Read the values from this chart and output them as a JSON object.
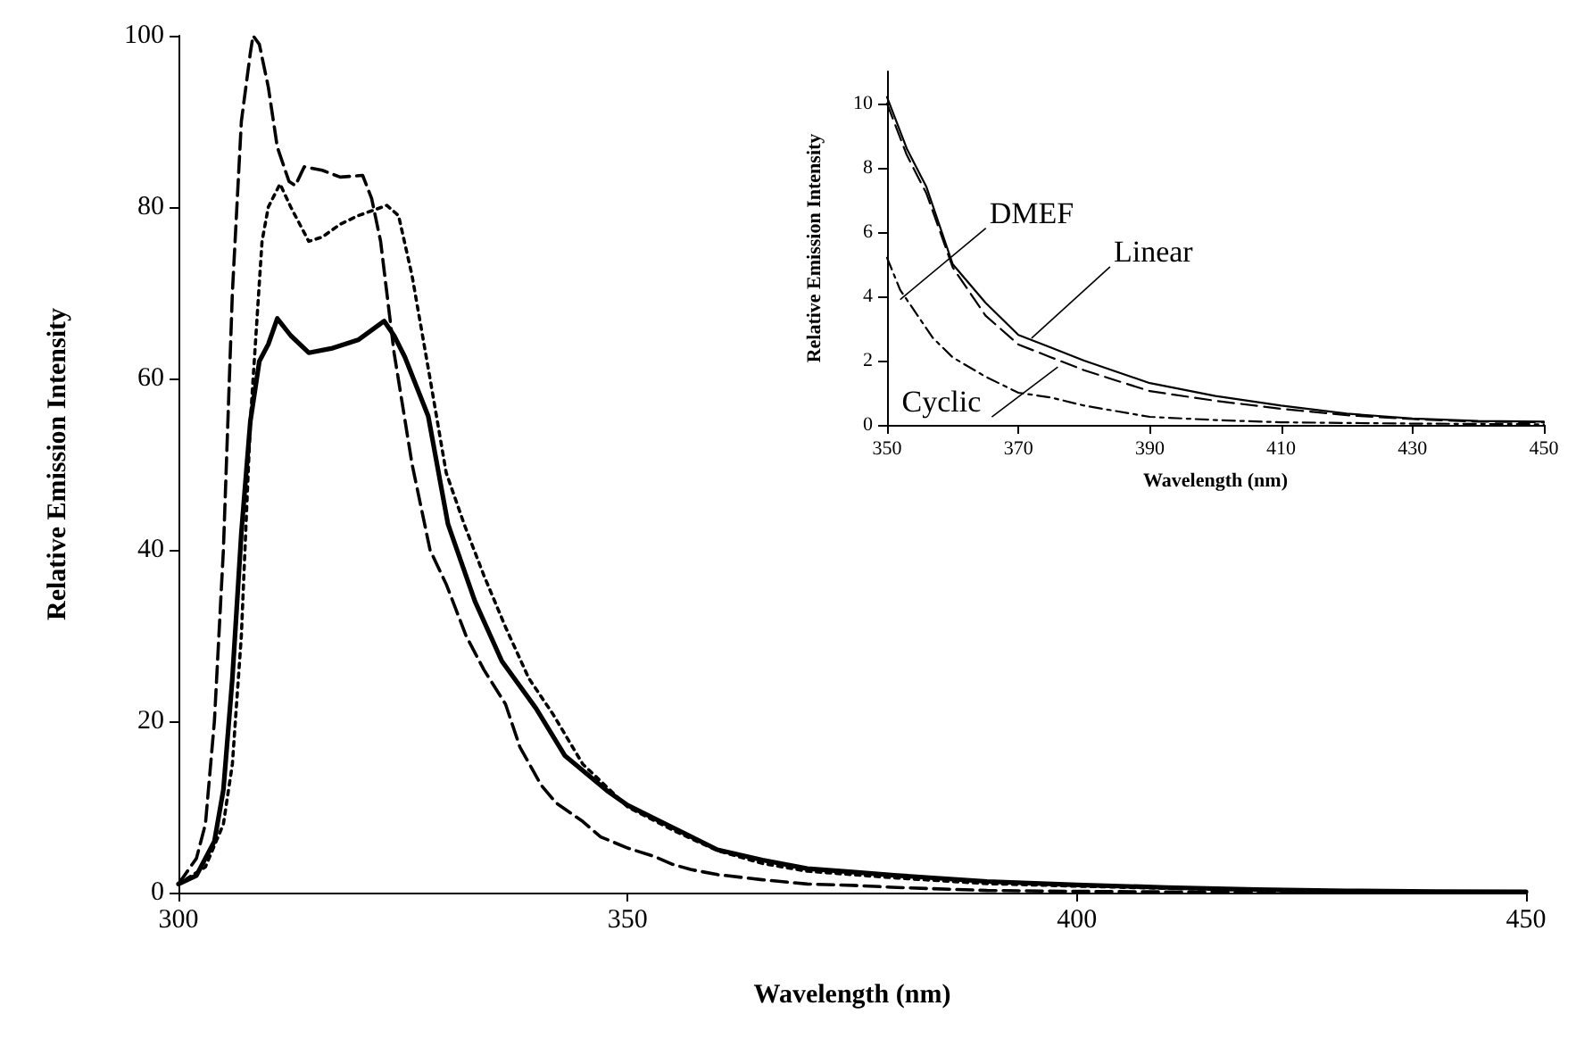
{
  "chart_data": [
    {
      "type": "line",
      "xlabel": "Wavelength (nm)",
      "ylabel": "Relative Emission Intensity",
      "xlim": [
        300,
        450
      ],
      "ylim": [
        0,
        100
      ],
      "xticks": [
        300,
        350,
        400,
        450
      ],
      "yticks": [
        0,
        20,
        40,
        60,
        80,
        100
      ],
      "grid": false,
      "marker": "none",
      "series": [
        {
          "color": "#000000",
          "line_style": "dashed",
          "x": [
            300,
            302,
            303,
            304,
            305,
            306,
            307,
            308,
            308.3,
            309,
            310,
            311,
            312.3,
            313,
            314,
            316,
            318,
            320.5,
            321.5,
            322.5,
            324,
            326,
            328,
            329.8,
            332,
            334,
            336.4,
            338,
            340.4,
            342,
            345,
            347,
            350,
            353,
            355,
            357,
            360,
            365,
            370,
            375,
            380,
            390,
            400,
            410,
            430,
            450
          ],
          "values": [
            1,
            4,
            8,
            20,
            40,
            70,
            90,
            98,
            100,
            99,
            94,
            87,
            83,
            82.5,
            84.7,
            84.3,
            83.5,
            83.7,
            81,
            76,
            63,
            50,
            40,
            36,
            30,
            26,
            22,
            17,
            12.5,
            10.5,
            8.3,
            6.5,
            5.2,
            4.2,
            3.3,
            2.7,
            2.1,
            1.5,
            1,
            0.85,
            0.6,
            0.25,
            0.15,
            0.08,
            0.04,
            0.02
          ]
        },
        {
          "color": "#000000",
          "line_style": "dotted",
          "x": [
            300,
            303,
            305,
            306,
            307,
            308,
            309.3,
            310,
            311.3,
            312.5,
            314.5,
            316,
            318,
            320,
            323.2,
            324.5,
            326,
            328,
            329.8,
            331.8,
            334,
            336.4,
            339,
            341.7,
            345,
            350,
            355,
            360,
            365,
            370,
            375,
            380,
            390,
            400,
            410,
            420,
            430,
            440,
            450
          ],
          "values": [
            1,
            3,
            8,
            15,
            30,
            55,
            76,
            80,
            82.7,
            80,
            76,
            76.5,
            78,
            79,
            80.2,
            79,
            72,
            60,
            49,
            43,
            37,
            31,
            25,
            20.8,
            15,
            10,
            7.3,
            4.9,
            3.4,
            2.5,
            2.1,
            1.7,
            1.05,
            0.75,
            0.5,
            0.3,
            0.18,
            0.1,
            0.08
          ]
        },
        {
          "color": "#000000",
          "line_style": "solid",
          "x": [
            300,
            302,
            304,
            305,
            306,
            307,
            308,
            309,
            310,
            311,
            312.5,
            314.5,
            317,
            320,
            322.9,
            324,
            325.2,
            327.8,
            330,
            333,
            336,
            339.8,
            343,
            347.7,
            350,
            355,
            360,
            365,
            370,
            375,
            380,
            390,
            400,
            410,
            420,
            430,
            440,
            450
          ],
          "values": [
            1,
            2,
            6,
            12,
            25,
            42,
            55,
            62,
            64,
            67,
            65,
            63,
            63.5,
            64.5,
            66.7,
            65,
            62.5,
            55.6,
            43,
            34,
            27,
            21.5,
            16,
            11.9,
            10.2,
            7.6,
            5,
            3.8,
            2.8,
            2.4,
            2,
            1.3,
            0.9,
            0.6,
            0.35,
            0.2,
            0.12,
            0.1
          ]
        }
      ]
    },
    {
      "type": "line",
      "xlabel": "Wavelength (nm)",
      "ylabel": "Relative Emission Intensity",
      "xlim": [
        350,
        450
      ],
      "ylim": [
        0,
        11
      ],
      "xticks": [
        350,
        370,
        390,
        410,
        430,
        450
      ],
      "yticks": [
        0,
        2,
        4,
        6,
        8,
        10
      ],
      "grid": false,
      "marker": "none",
      "annotations": [
        {
          "text": "DMEF",
          "x": 352,
          "y": 3.9
        },
        {
          "text": "Linear",
          "x": 372,
          "y": 2.7
        },
        {
          "text": "Cyclic",
          "x": 376,
          "y": 1.8
        }
      ],
      "series": [
        {
          "color": "#000000",
          "line_style": "solid",
          "x": [
            350,
            353,
            356,
            360,
            365,
            370,
            375,
            380,
            390,
            400,
            410,
            420,
            430,
            440,
            450
          ],
          "values": [
            10.2,
            8.6,
            7.4,
            5,
            3.8,
            2.8,
            2.4,
            2,
            1.3,
            0.9,
            0.6,
            0.35,
            0.2,
            0.12,
            0.1
          ]
        },
        {
          "color": "#000000",
          "line_style": "dashed",
          "x": [
            350,
            353,
            356,
            360,
            365,
            370,
            375,
            380,
            390,
            400,
            410,
            420,
            430,
            440,
            450
          ],
          "values": [
            10,
            8.4,
            7.2,
            4.9,
            3.4,
            2.5,
            2.1,
            1.7,
            1.05,
            0.75,
            0.5,
            0.3,
            0.18,
            0.1,
            0.08
          ]
        },
        {
          "color": "#000000",
          "line_style": "dashdot",
          "x": [
            350,
            352,
            355,
            357,
            360,
            365,
            370,
            375,
            380,
            390,
            400,
            410,
            430,
            450
          ],
          "values": [
            5.2,
            4.2,
            3.3,
            2.7,
            2.1,
            1.5,
            1,
            0.85,
            0.6,
            0.25,
            0.15,
            0.08,
            0.04,
            0.02
          ]
        }
      ]
    }
  ]
}
